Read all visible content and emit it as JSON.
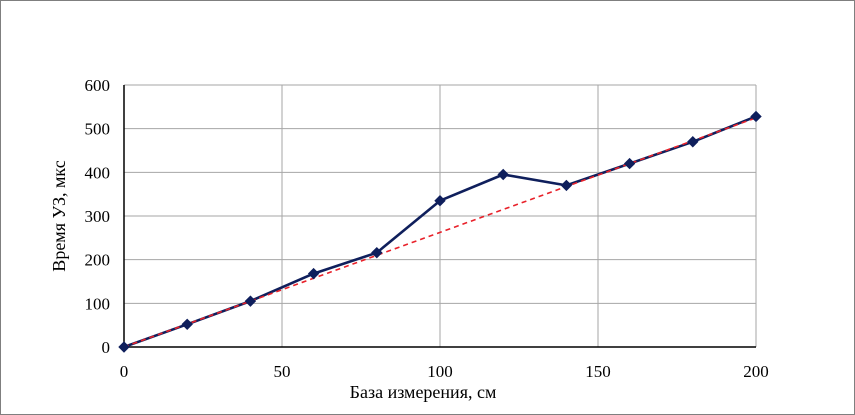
{
  "chart_data": {
    "type": "line",
    "xlabel": "База измерения, см",
    "ylabel": "Время УЗ, мкс",
    "xlim": [
      0,
      200
    ],
    "ylim": [
      0,
      600
    ],
    "x_ticks": [
      0,
      50,
      100,
      150,
      200
    ],
    "y_ticks": [
      0,
      100,
      200,
      300,
      400,
      500,
      600
    ],
    "grid": true,
    "series": [
      {
        "color": "#0f1f5c",
        "marker": "diamond",
        "x": [
          0,
          20,
          40,
          60,
          80,
          100,
          120,
          140,
          160,
          180,
          200
        ],
        "y": [
          0,
          52,
          105,
          168,
          216,
          335,
          395,
          370,
          420,
          470,
          528
        ]
      },
      {
        "color": "#e8212a",
        "style": "dashed",
        "x": [
          0,
          200
        ],
        "y": [
          0,
          525
        ]
      }
    ]
  }
}
